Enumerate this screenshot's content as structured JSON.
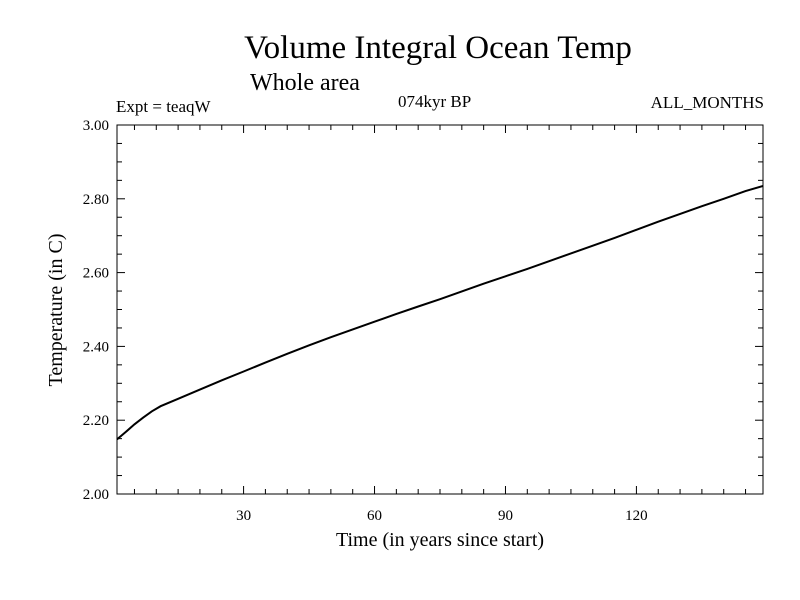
{
  "chart_data": {
    "type": "line",
    "title": "Volume Integral Ocean Temp",
    "subtitle": "Whole area",
    "expt_label": "Expt = teaqW",
    "period_label": "074kyr BP",
    "months_label": "ALL_MONTHS",
    "xlabel": "Time (in years since start)",
    "ylabel": "Temperature (in C)",
    "xlim": [
      1,
      149
    ],
    "ylim": [
      2.0,
      3.0
    ],
    "x_ticks": [
      30,
      60,
      90,
      120
    ],
    "x_tick_labels": [
      "30",
      "60",
      "90",
      "120"
    ],
    "y_ticks": [
      2.0,
      2.2,
      2.4,
      2.6,
      2.8,
      3.0
    ],
    "y_tick_labels": [
      "2.00",
      "2.20",
      "2.40",
      "2.60",
      "2.80",
      "3.00"
    ],
    "grid": false,
    "series": [
      {
        "name": "Volume integral ocean temperature",
        "x": [
          1,
          3,
          5,
          7,
          9,
          11,
          15,
          20,
          25,
          30,
          35,
          40,
          45,
          50,
          55,
          60,
          65,
          70,
          75,
          80,
          85,
          90,
          95,
          100,
          105,
          110,
          115,
          120,
          125,
          130,
          135,
          140,
          145,
          149
        ],
        "values": [
          2.148,
          2.168,
          2.189,
          2.207,
          2.224,
          2.238,
          2.258,
          2.283,
          2.308,
          2.332,
          2.356,
          2.38,
          2.403,
          2.425,
          2.446,
          2.467,
          2.488,
          2.508,
          2.528,
          2.549,
          2.57,
          2.59,
          2.61,
          2.631,
          2.652,
          2.673,
          2.694,
          2.716,
          2.738,
          2.759,
          2.78,
          2.8,
          2.821,
          2.835
        ]
      }
    ]
  }
}
